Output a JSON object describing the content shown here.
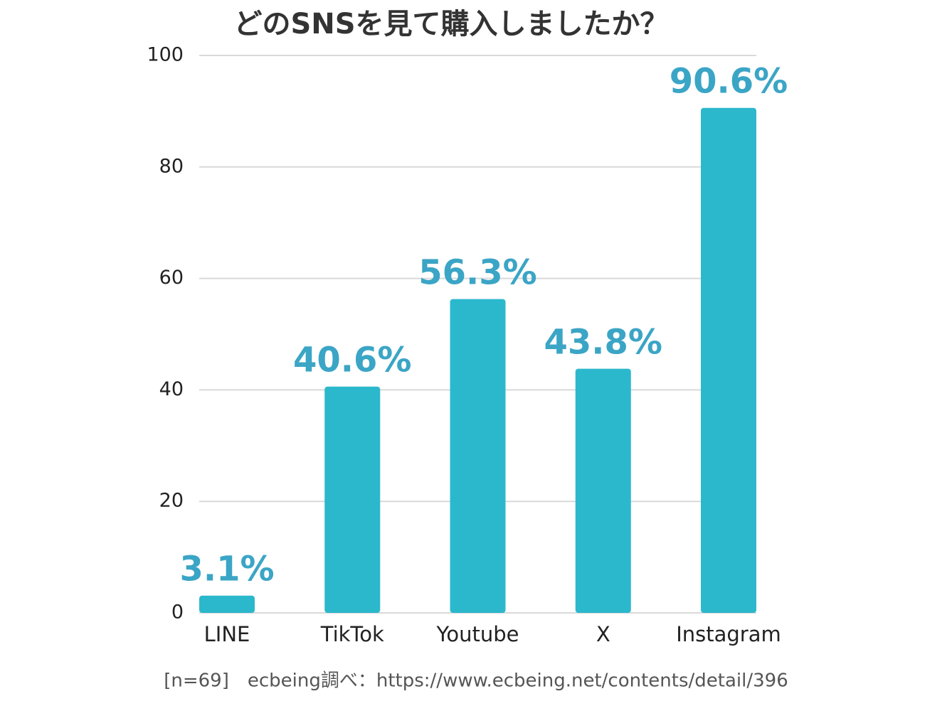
{
  "chart_data": {
    "type": "bar",
    "title": "どのSNSを見て購入しましたか？",
    "categories": [
      "LINE",
      "TikTok",
      "Youtube",
      "X",
      "Instagram"
    ],
    "values": [
      3.1,
      40.6,
      56.3,
      43.8,
      90.6
    ],
    "value_labels": [
      "3.1%",
      "40.6%",
      "56.3%",
      "43.8%",
      "90.6%"
    ],
    "color": "#2cb8cc",
    "label_color": "#3ba5c6",
    "ylim": [
      0,
      100
    ],
    "yticks": [
      0,
      20,
      40,
      60,
      80,
      100
    ],
    "grid": true,
    "footnote": "[n=69]　ecbeing調べ：https://www.ecbeing.net/contents/detail/396"
  }
}
